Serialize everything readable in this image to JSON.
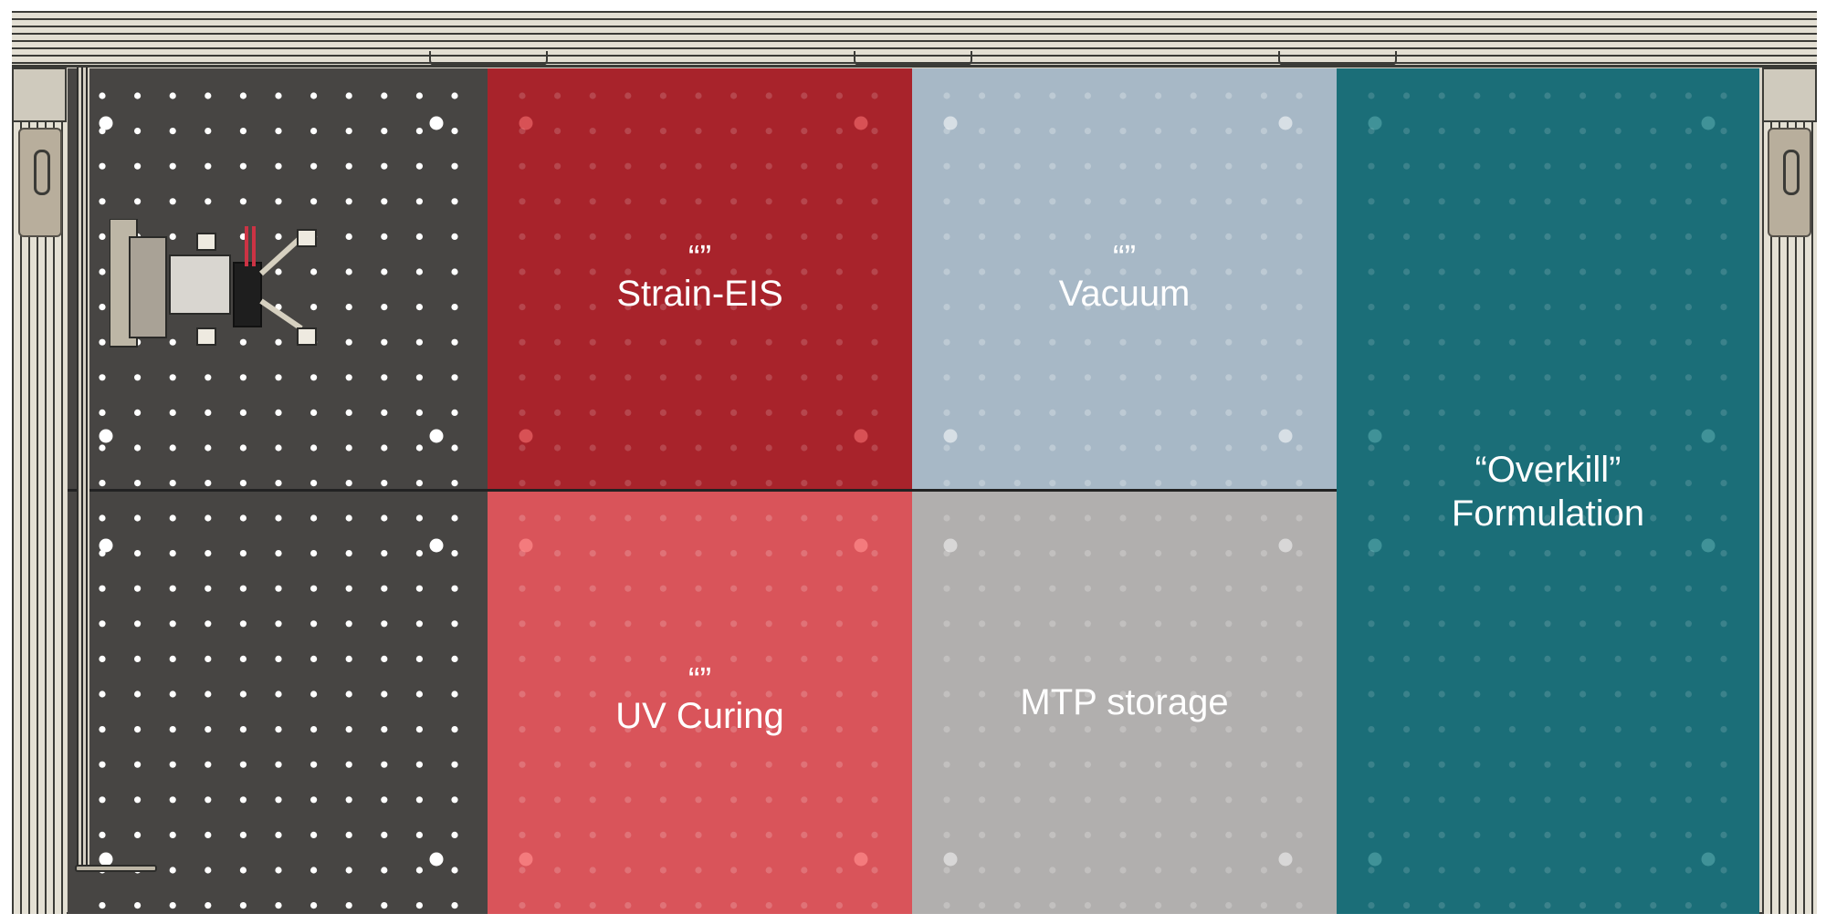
{
  "modules": [
    {
      "id": "strain-eis",
      "quote": "“”",
      "label": "Strain-EIS",
      "color": "#a8232b"
    },
    {
      "id": "vacuum",
      "quote": "“”",
      "label": "Vacuum",
      "color": "#a7b8c6"
    },
    {
      "id": "overkill",
      "line1": "“Overkill”",
      "line2": "Formulation",
      "color": "#1b6e78"
    },
    {
      "id": "uv-curing",
      "quote": "“”",
      "label": "UV Curing",
      "color": "#d9545a"
    },
    {
      "id": "mtp-storage",
      "label": "MTP storage",
      "color": "#b1afae"
    }
  ],
  "colors": {
    "deck": "#4a4846",
    "frame": "#d8d4c9",
    "hole": "#ffffff"
  }
}
